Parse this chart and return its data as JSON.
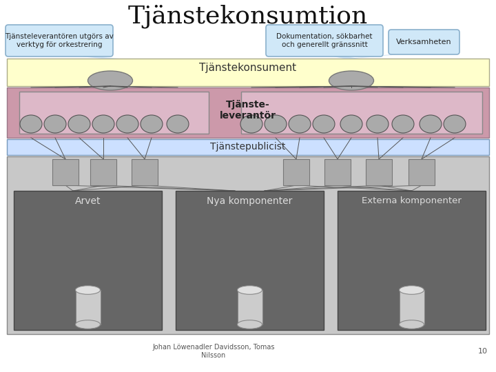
{
  "title": "Tjänstekonsumtion",
  "title_fontsize": 26,
  "bg_color": "#ffffff",
  "callout_left_text": "Tjänsteleverantören utgörs av\nverktyg för orkestrering",
  "callout_mid_text": "Dokumentation, sökbarhet\noch generellt gränssnitt",
  "callout_right_text": "Verksamheten",
  "layer_konsument_color": "#ffffcc",
  "layer_konsument_label": "Tjänstekonsument",
  "layer_leverantor_color": "#cc99aa",
  "layer_leverantor_label": "Tjänste-\nleverantör",
  "layer_publicist_color": "#cce0ff",
  "layer_publicist_label": "Tjänstepublicist",
  "layer_bottom_color": "#c8c8c8",
  "footer_text": "Johan Löwenadler Davidsson, Tomas\nNilsson",
  "footer_number": "10",
  "ellipse_color": "#aaaaaa",
  "callout_box_color": "#d0e8f8",
  "callout_box_edge": "#8ab0cc",
  "cone_color": "#aaccee",
  "line_color": "#555555",
  "circle_color": "#aaaaaa",
  "sq_color": "#aaaaaa",
  "dark_box_color": "#666666",
  "cyl_color": "#cccccc",
  "cyl_top_color": "#e0e0e0"
}
